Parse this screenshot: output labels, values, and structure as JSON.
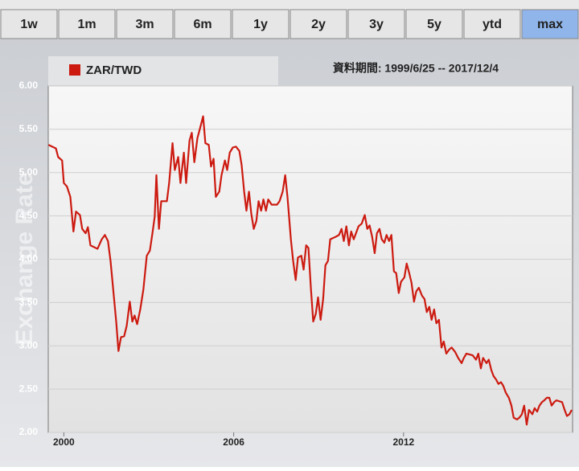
{
  "buttons": [
    {
      "label": "1w",
      "selected": false
    },
    {
      "label": "1m",
      "selected": false
    },
    {
      "label": "3m",
      "selected": false
    },
    {
      "label": "6m",
      "selected": false
    },
    {
      "label": "1y",
      "selected": false
    },
    {
      "label": "2y",
      "selected": false
    },
    {
      "label": "3y",
      "selected": false
    },
    {
      "label": "5y",
      "selected": false
    },
    {
      "label": "ytd",
      "selected": false
    },
    {
      "label": "max",
      "selected": true
    }
  ],
  "chart_data": {
    "type": "line",
    "date_range": "資料期間: 1999/6/25 -- 2017/12/4",
    "y_label": "Exchange Rate",
    "grid": true,
    "xlim": [
      1999.45,
      2017.97
    ],
    "xticks": [
      2000,
      2006,
      2012
    ],
    "ylim": [
      2,
      6
    ],
    "yticks": [
      {
        "value": 2,
        "label": "2.00"
      },
      {
        "value": 2.5,
        "label": "2.50"
      },
      {
        "value": 3,
        "label": "3.00"
      },
      {
        "value": 3.5,
        "label": "3.50"
      },
      {
        "value": 4,
        "label": "4.00"
      },
      {
        "value": 4.5,
        "label": "4.50"
      },
      {
        "value": 5,
        "label": "5.00"
      },
      {
        "value": 5.5,
        "label": "5.50"
      },
      {
        "value": 6,
        "label": "6.00"
      }
    ],
    "x": [
      1999.46,
      1999.72,
      1999.8,
      1999.94,
      2000.0,
      2000.11,
      2000.23,
      2000.34,
      2000.43,
      2000.57,
      2000.65,
      2000.77,
      2000.85,
      2000.94,
      2001.19,
      2001.34,
      2001.45,
      2001.56,
      2001.65,
      2001.73,
      2001.85,
      2001.93,
      2002.02,
      2002.13,
      2002.22,
      2002.33,
      2002.42,
      2002.5,
      2002.59,
      2002.7,
      2002.81,
      2002.93,
      2003.04,
      2003.13,
      2003.21,
      2003.27,
      2003.36,
      2003.44,
      2003.64,
      2003.72,
      2003.84,
      2003.92,
      2004.04,
      2004.12,
      2004.24,
      2004.32,
      2004.44,
      2004.52,
      2004.61,
      2004.72,
      2004.81,
      2004.92,
      2005.0,
      2005.12,
      2005.2,
      2005.29,
      2005.37,
      2005.49,
      2005.57,
      2005.69,
      2005.77,
      2005.86,
      2005.97,
      2006.08,
      2006.2,
      2006.28,
      2006.37,
      2006.45,
      2006.54,
      2006.62,
      2006.71,
      2006.8,
      2006.88,
      2006.97,
      2007.05,
      2007.14,
      2007.22,
      2007.34,
      2007.53,
      2007.62,
      2007.73,
      2007.82,
      2007.9,
      2008.02,
      2008.1,
      2008.19,
      2008.27,
      2008.39,
      2008.47,
      2008.56,
      2008.64,
      2008.73,
      2008.81,
      2008.9,
      2008.98,
      2009.07,
      2009.16,
      2009.24,
      2009.33,
      2009.41,
      2009.61,
      2009.72,
      2009.81,
      2009.89,
      2009.98,
      2010.07,
      2010.15,
      2010.24,
      2010.41,
      2010.52,
      2010.63,
      2010.72,
      2010.8,
      2010.89,
      2010.98,
      2011.06,
      2011.15,
      2011.23,
      2011.32,
      2011.4,
      2011.49,
      2011.57,
      2011.66,
      2011.74,
      2011.83,
      2011.91,
      2012.03,
      2012.11,
      2012.2,
      2012.28,
      2012.37,
      2012.45,
      2012.54,
      2012.65,
      2012.74,
      2012.82,
      2012.91,
      2012.99,
      2013.08,
      2013.16,
      2013.25,
      2013.34,
      2013.42,
      2013.51,
      2013.62,
      2013.7,
      2013.82,
      2013.93,
      2014.05,
      2014.13,
      2014.22,
      2014.44,
      2014.56,
      2014.64,
      2014.73,
      2014.81,
      2014.93,
      2015.01,
      2015.1,
      2015.18,
      2015.27,
      2015.35,
      2015.44,
      2015.52,
      2015.61,
      2015.72,
      2015.81,
      2015.89,
      2016.01,
      2016.09,
      2016.18,
      2016.26,
      2016.35,
      2016.43,
      2016.55,
      2016.63,
      2016.72,
      2016.8,
      2016.89,
      2016.97,
      2017.06,
      2017.15,
      2017.23,
      2017.32,
      2017.4,
      2017.6,
      2017.69,
      2017.77,
      2017.86,
      2017.94
    ],
    "series": [
      {
        "name": "ZAR/TWD",
        "color": "#cc1a10",
        "values": [
          5.32,
          5.28,
          5.18,
          5.14,
          4.88,
          4.84,
          4.72,
          4.32,
          4.55,
          4.51,
          4.35,
          4.3,
          4.37,
          4.16,
          4.12,
          4.23,
          4.28,
          4.21,
          3.98,
          3.7,
          3.28,
          2.94,
          3.1,
          3.11,
          3.23,
          3.51,
          3.28,
          3.35,
          3.25,
          3.42,
          3.65,
          4.04,
          4.1,
          4.3,
          4.49,
          4.97,
          4.35,
          4.67,
          4.67,
          4.88,
          5.34,
          5.03,
          5.18,
          4.88,
          5.23,
          4.88,
          5.37,
          5.46,
          5.12,
          5.4,
          5.51,
          5.65,
          5.34,
          5.32,
          5.07,
          5.16,
          4.72,
          4.78,
          4.97,
          5.14,
          5.03,
          5.23,
          5.29,
          5.3,
          5.25,
          5.09,
          4.78,
          4.56,
          4.78,
          4.53,
          4.35,
          4.44,
          4.67,
          4.56,
          4.69,
          4.56,
          4.69,
          4.63,
          4.63,
          4.67,
          4.78,
          4.97,
          4.72,
          4.23,
          3.98,
          3.76,
          4.02,
          4.04,
          3.88,
          4.16,
          4.13,
          3.65,
          3.28,
          3.37,
          3.56,
          3.3,
          3.54,
          3.93,
          3.98,
          4.23,
          4.26,
          4.28,
          4.35,
          4.21,
          4.38,
          4.16,
          4.32,
          4.23,
          4.38,
          4.41,
          4.51,
          4.35,
          4.39,
          4.26,
          4.07,
          4.3,
          4.35,
          4.23,
          4.19,
          4.28,
          4.21,
          4.28,
          3.86,
          3.84,
          3.61,
          3.74,
          3.79,
          3.95,
          3.84,
          3.73,
          3.51,
          3.63,
          3.67,
          3.58,
          3.54,
          3.39,
          3.45,
          3.3,
          3.42,
          3.26,
          3.3,
          2.98,
          3.05,
          2.91,
          2.96,
          2.98,
          2.93,
          2.86,
          2.8,
          2.86,
          2.91,
          2.89,
          2.84,
          2.91,
          2.74,
          2.86,
          2.8,
          2.84,
          2.72,
          2.65,
          2.61,
          2.56,
          2.58,
          2.54,
          2.46,
          2.4,
          2.31,
          2.17,
          2.15,
          2.17,
          2.21,
          2.31,
          2.09,
          2.26,
          2.21,
          2.28,
          2.24,
          2.31,
          2.35,
          2.37,
          2.4,
          2.4,
          2.31,
          2.35,
          2.37,
          2.35,
          2.26,
          2.19,
          2.21,
          2.26
        ]
      }
    ]
  }
}
